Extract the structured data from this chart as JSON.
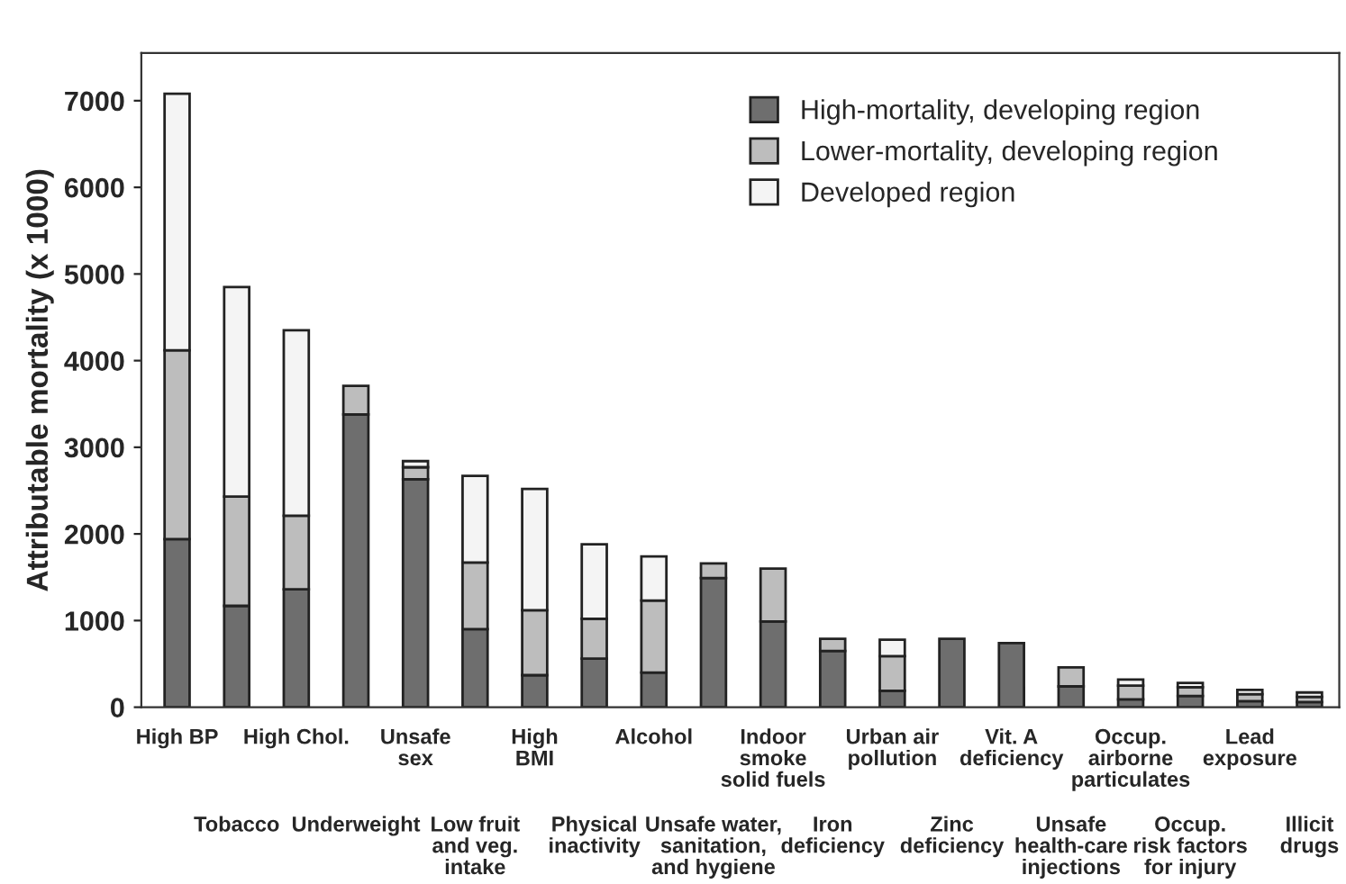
{
  "chart_data": {
    "type": "bar",
    "stacked": true,
    "ylabel": "Attributable mortality (x 1000)",
    "categories": [
      "High BP",
      "Tobacco",
      "High Chol.",
      "Underweight",
      "Unsafe\nsex",
      "Low fruit\nand veg.\nintake",
      "High\nBMI",
      "Physical\ninactivity",
      "Alcohol",
      "Unsafe water,\nsanitation,\nand hygiene",
      "Indoor\nsmoke\nsolid fuels",
      "Iron\ndeficiency",
      "Urban air\npollution",
      "Zinc\ndeficiency",
      "Vit. A\ndeficiency",
      "Unsafe\nhealth-care\ninjections",
      "Occup.\nairborne\nparticulates",
      "Occup.\nrisk factors\nfor injury",
      "Lead\nexposure",
      "Illicit\ndrugs"
    ],
    "series": [
      {
        "name": "High-mortality, developing region",
        "color": "#6e6e6e",
        "values": [
          1940,
          1170,
          1360,
          3380,
          2630,
          900,
          370,
          560,
          400,
          1490,
          990,
          650,
          190,
          790,
          740,
          240,
          90,
          130,
          70,
          60
        ]
      },
      {
        "name": "Lower-mortality, developing region",
        "color": "#bdbdbd",
        "values": [
          2180,
          1260,
          850,
          330,
          140,
          770,
          750,
          460,
          830,
          170,
          610,
          140,
          400,
          0,
          0,
          220,
          160,
          100,
          80,
          60
        ]
      },
      {
        "name": "Developed region",
        "color": "#f4f4f4",
        "values": [
          2960,
          2420,
          2140,
          0,
          70,
          1000,
          1400,
          860,
          510,
          0,
          0,
          0,
          190,
          0,
          0,
          0,
          70,
          50,
          50,
          50
        ]
      }
    ],
    "ylim": [
      0,
      7550
    ],
    "yticks": [
      0,
      1000,
      2000,
      3000,
      4000,
      5000,
      6000,
      7000
    ],
    "grid": false,
    "legend": "top right"
  }
}
